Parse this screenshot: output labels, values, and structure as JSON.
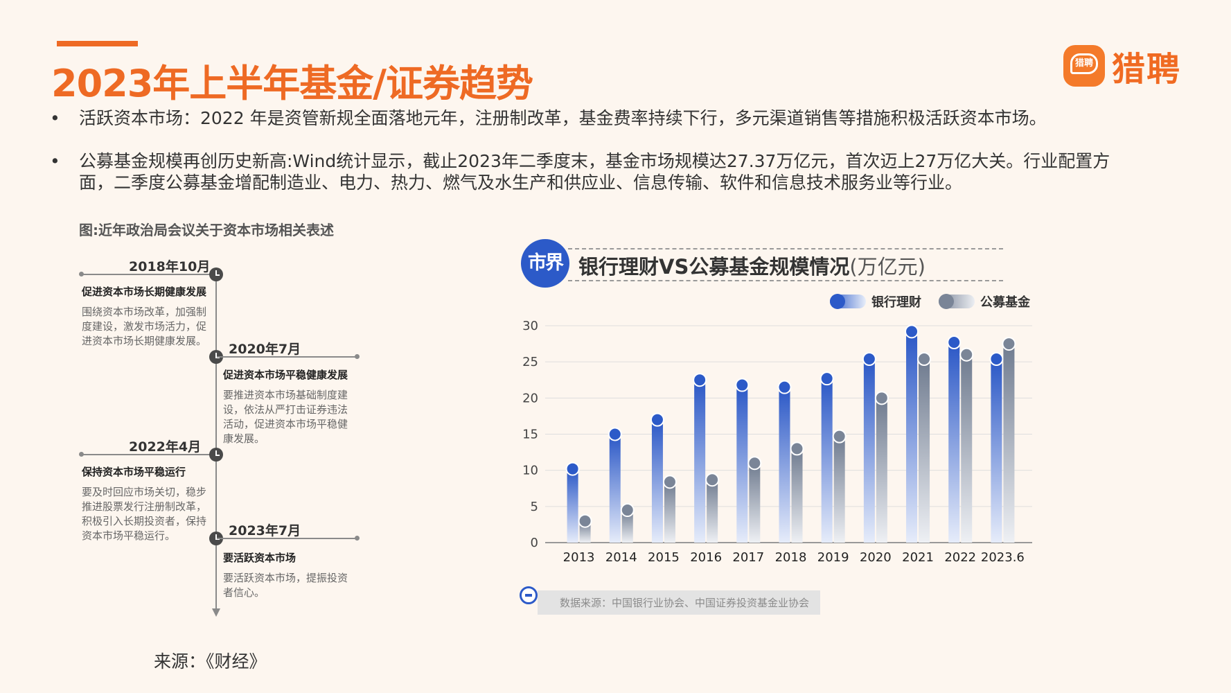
{
  "header": {
    "title": "2023年上半年基金/证券趋势",
    "logo_badge_text": "猎聘",
    "logo_text": "猎聘"
  },
  "bullets": [
    "活跃资本市场：2022 年是资管新规全面落地元年，注册制改革，基金费率持续下行，多元渠道销售等措施积极活跃资本市场。",
    "公募基金规模再创历史新高:Wind统计显示，截止2023年二季度末，基金市场规模达27.37万亿元，首次迈上27万亿大关。行业配置方面，二季度公募基金增配制造业、电力、热力、燃气及水生产和供应业、信息传输、软件和信息技术服务业等行业。"
  ],
  "bullet_glyph": "•",
  "timeline": {
    "caption": "图:近年政治局会议关于资本市场相关表述",
    "events": [
      {
        "date": "2018年10月",
        "heading": "促进资本市场长期健康发展",
        "desc": "围绕资本市场改革，加强制度建设，激发市场活力，促进资本市场长期健康发展。"
      },
      {
        "date": "2020年7月",
        "heading": "促进资本市场平稳健康发展",
        "desc": "要推进资本市场基础制度建设，依法从严打击证券违法活动，促进资本市场平稳健康发展。"
      },
      {
        "date": "2022年4月",
        "heading": "保持资本市场平稳运行",
        "desc": "要及时回应市场关切，稳步推进股票发行注册制改革，积极引入长期投资者，保持资本市场平稳运行。"
      },
      {
        "date": "2023年7月",
        "heading": "要活跃资本市场",
        "desc": "要活跃资本市场，提振投资者信心。"
      }
    ]
  },
  "source": "来源：《财经》",
  "chart": {
    "badge": "市界",
    "title": "银行理财VS公募基金规模情况",
    "unit": "(万亿元)",
    "data_source": "数据来源：中国银行业协会、中国证券投资基金业协会",
    "colors": {
      "bank": "#2c5ac8",
      "fund": "#7a8597"
    }
  },
  "chart_data": {
    "type": "bar",
    "title": "银行理财VS公募基金规模情况(万亿元)",
    "categories": [
      "2013",
      "2014",
      "2015",
      "2016",
      "2017",
      "2018",
      "2019",
      "2020",
      "2021",
      "2022",
      "2023.6"
    ],
    "series": [
      {
        "name": "银行理财",
        "values": [
          10.2,
          15.0,
          17.0,
          22.5,
          21.8,
          21.5,
          22.7,
          25.4,
          29.2,
          27.7,
          25.4
        ]
      },
      {
        "name": "公募基金",
        "values": [
          3.0,
          4.5,
          8.4,
          8.7,
          11.0,
          13.0,
          14.7,
          20.0,
          25.4,
          26.0,
          27.5
        ]
      }
    ],
    "yticks": [
      0,
      5,
      10,
      15,
      20,
      25,
      30
    ],
    "ylim": [
      0,
      30
    ],
    "grid": true,
    "legend": "top-right"
  }
}
